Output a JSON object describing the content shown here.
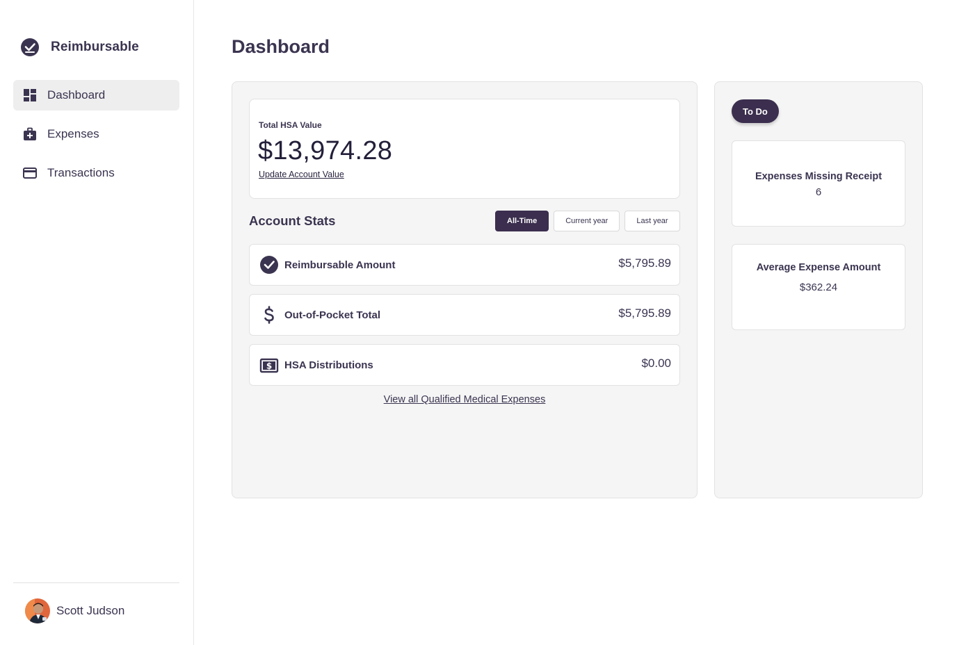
{
  "sidebar": {
    "brand": "Reimbursable",
    "items": [
      {
        "label": "Dashboard",
        "icon": "dashboard-icon",
        "active": true
      },
      {
        "label": "Expenses",
        "icon": "medical-bag-icon",
        "active": false
      },
      {
        "label": "Transactions",
        "icon": "credit-card-icon",
        "active": false
      }
    ],
    "user": {
      "name": "Scott Judson"
    }
  },
  "main": {
    "title": "Dashboard",
    "hsa": {
      "label": "Total HSA Value",
      "value": "$13,974.28",
      "link": "Update Account Value"
    },
    "stats": {
      "title": "Account Stats",
      "filters": [
        {
          "label": "All-Time",
          "active": true
        },
        {
          "label": "Current year",
          "active": false
        },
        {
          "label": "Last year",
          "active": false
        }
      ],
      "rows": [
        {
          "label": "Reimbursable Amount",
          "value": "$5,795.89",
          "icon": "check-circle-icon"
        },
        {
          "label": "Out-of-Pocket Total",
          "value": "$5,795.89",
          "icon": "dollar-icon"
        },
        {
          "label": "HSA Distributions",
          "value": "$0.00",
          "icon": "money-box-icon"
        }
      ],
      "view_all": "View all Qualified Medical Expenses"
    },
    "todo": {
      "badge": "To Do",
      "cards": [
        {
          "title": "Expenses Missing Receipt",
          "value": "6"
        },
        {
          "title": "Average Expense Amount",
          "value": "$362.24"
        }
      ]
    }
  },
  "colors": {
    "accent": "#3b2e4e",
    "text": "#3b3450",
    "panel_bg": "#f5f5f5",
    "border": "#e2e2e2"
  }
}
